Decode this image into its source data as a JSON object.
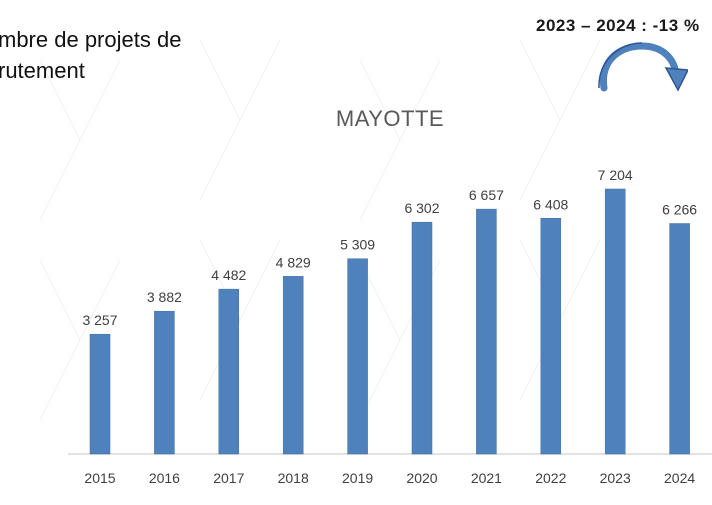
{
  "slide": {
    "title_line1": "mbre de projets de",
    "title_line2": "rutement",
    "variation_text": "2023 – 2024 : -13 %",
    "arrow_icon": "curved-arrow-down-icon"
  },
  "colors": {
    "bar": "#4f81bd",
    "bar_stroke": "#3f6fa5",
    "title": "#595959",
    "labels": "#404040",
    "axis": "#d9d9d9",
    "arrow": "#4f81bd"
  },
  "chart_data": {
    "type": "bar",
    "title": "MAYOTTE",
    "xlabel": "",
    "ylabel": "",
    "categories": [
      "2015",
      "2016",
      "2017",
      "2018",
      "2019",
      "2020",
      "2021",
      "2022",
      "2023",
      "2024"
    ],
    "series": [
      {
        "values": [
          3257,
          3882,
          4482,
          4829,
          5309,
          6302,
          6657,
          6408,
          7204,
          6266
        ],
        "labels": [
          "3 257",
          "3 882",
          "4 482",
          "4 829",
          "5 309",
          "6 302",
          "6 657",
          "6 408",
          "7 204",
          "6 266"
        ]
      }
    ],
    "ylim": [
      0,
      7204
    ],
    "grid": false,
    "legend": "none",
    "data_labels": true
  }
}
